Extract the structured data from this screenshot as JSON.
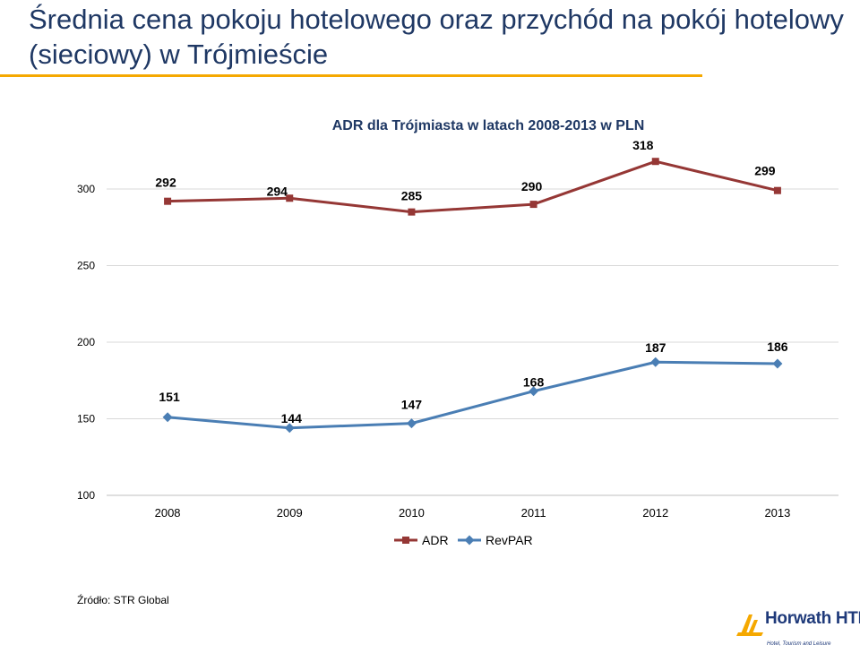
{
  "slide": {
    "title": "Średnia cena pokoju hotelowego oraz przychód na pokój hotelowy (sieciowy) w Trójmieście",
    "source": "Źródło: STR Global",
    "logo_name": "Horwath HTL",
    "logo_tagline": "Hotel, Tourism and Leisure"
  },
  "colors": {
    "title": "#1f3864",
    "accent_rule": "#f5a800",
    "adr_series": "#953735",
    "revpar_series": "#4a7eb4",
    "gridline": "#d9d9d9",
    "logo_blue": "#1f3a7a",
    "logo_gold": "#f5a800"
  },
  "chart_data": {
    "type": "line",
    "title": "ADR dla Trójmiasta w latach 2008-2013 w PLN",
    "xlabel": "",
    "ylabel": "",
    "categories": [
      "2008",
      "2009",
      "2010",
      "2011",
      "2012",
      "2013"
    ],
    "ylim": [
      100,
      300
    ],
    "yticks": [
      100,
      150,
      200,
      250,
      300
    ],
    "grid": true,
    "legend_position": "bottom",
    "series": [
      {
        "name": "ADR",
        "values": [
          292,
          294,
          285,
          290,
          318,
          299
        ],
        "labels": [
          "292",
          "294",
          "285",
          "290",
          "318",
          "299"
        ],
        "marker": "square",
        "color": "#953735"
      },
      {
        "name": "RevPAR",
        "values": [
          151,
          144,
          147,
          168,
          187,
          186
        ],
        "labels": [
          "151",
          "144",
          "147",
          "168",
          "187",
          "186"
        ],
        "marker": "diamond",
        "color": "#4a7eb4"
      }
    ]
  }
}
